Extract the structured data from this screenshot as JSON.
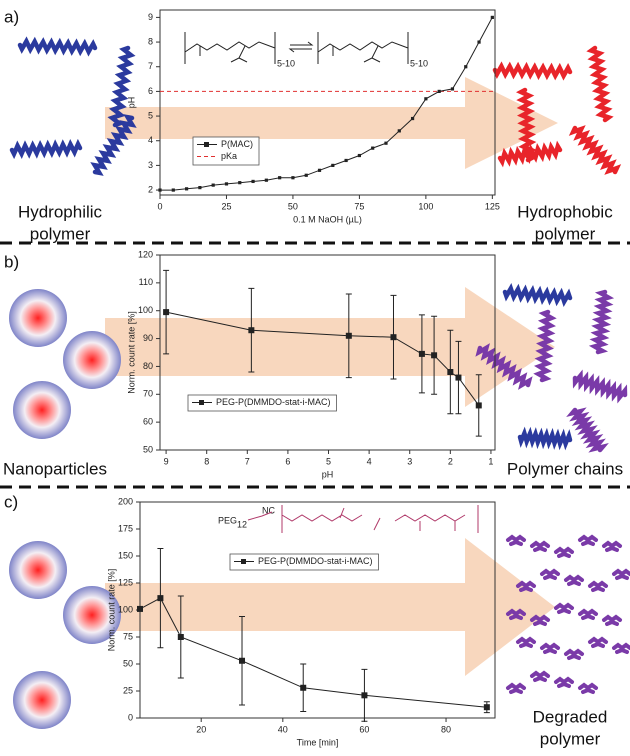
{
  "chart_data": [
    {
      "type": "line",
      "panel": "a)",
      "left_label": [
        "Hydrophilic",
        "polymer"
      ],
      "right_label": [
        "Hydrophobic",
        "polymer"
      ],
      "xlabel": "0.1 M NaOH (µL)",
      "ylabel": "pH",
      "x": [
        0,
        5,
        10,
        15,
        20,
        25,
        30,
        35,
        40,
        45,
        50,
        55,
        60,
        65,
        70,
        75,
        80,
        85,
        90,
        95,
        100,
        105,
        110,
        115,
        120,
        125
      ],
      "series": [
        {
          "name": "P(MAC)",
          "color": "#222222",
          "values": [
            2.0,
            2.0,
            2.05,
            2.1,
            2.2,
            2.25,
            2.3,
            2.35,
            2.4,
            2.5,
            2.5,
            2.6,
            2.8,
            3.0,
            3.2,
            3.4,
            3.7,
            3.9,
            4.4,
            4.9,
            5.7,
            6.0,
            6.1,
            7.0,
            8.0,
            9.0
          ]
        }
      ],
      "reference_lines": [
        {
          "name": "pKa",
          "value": 6.0,
          "color": "#e03030"
        }
      ],
      "structure_labels": [
        "5-10",
        "5-10"
      ],
      "xlim": [
        0,
        126
      ],
      "ylim": [
        1.8,
        9.3
      ],
      "xticks": [
        0,
        25,
        50,
        75,
        100,
        125
      ],
      "yticks": [
        2,
        3,
        4,
        5,
        6,
        7,
        8,
        9
      ]
    },
    {
      "type": "errorbar",
      "panel": "b)",
      "left_label": [
        "Nanoparticles"
      ],
      "right_label": [
        "Polymer chains"
      ],
      "xlabel": "pH",
      "ylabel": "Norm. count rate [%]",
      "x": [
        9.0,
        6.9,
        4.5,
        3.4,
        2.7,
        2.4,
        2.0,
        1.8,
        1.3
      ],
      "series": [
        {
          "name": "PEG-P(DMMDO-stat-i-MAC)",
          "color": "#222222",
          "values": [
            99.5,
            93,
            91,
            90.5,
            84.5,
            84,
            78,
            76,
            66
          ],
          "errors": [
            15,
            15,
            15,
            15,
            14,
            14,
            15,
            13,
            11
          ]
        }
      ],
      "xlim": [
        9.15,
        0.9
      ],
      "ylim": [
        50,
        120
      ],
      "xticks": [
        9,
        8,
        7,
        6,
        5,
        4,
        3,
        2,
        1
      ],
      "yticks": [
        50,
        60,
        70,
        80,
        90,
        100,
        110,
        120
      ]
    },
    {
      "type": "errorbar",
      "panel": "c)",
      "left_label": [],
      "right_label": [
        "Degraded",
        "polymer"
      ],
      "xlabel": "Time [min]",
      "ylabel": "Norm. count rate [%]",
      "x": [
        5,
        10,
        15,
        30,
        45,
        60,
        90
      ],
      "series": [
        {
          "name": "PEG-P(DMMDO-stat-i-MAC)",
          "color": "#222222",
          "values": [
            101,
            111,
            75,
            53,
            28,
            21,
            10
          ],
          "errors": [
            0,
            46,
            38,
            41,
            22,
            24,
            5
          ]
        }
      ],
      "structure_labels": [
        "PEG",
        "12",
        "NC"
      ],
      "xlim": [
        5,
        92
      ],
      "ylim": [
        0,
        200
      ],
      "xticks": [
        20,
        40,
        60,
        80
      ],
      "yticks": [
        0,
        25,
        50,
        75,
        100,
        125,
        150,
        175,
        200
      ]
    }
  ]
}
